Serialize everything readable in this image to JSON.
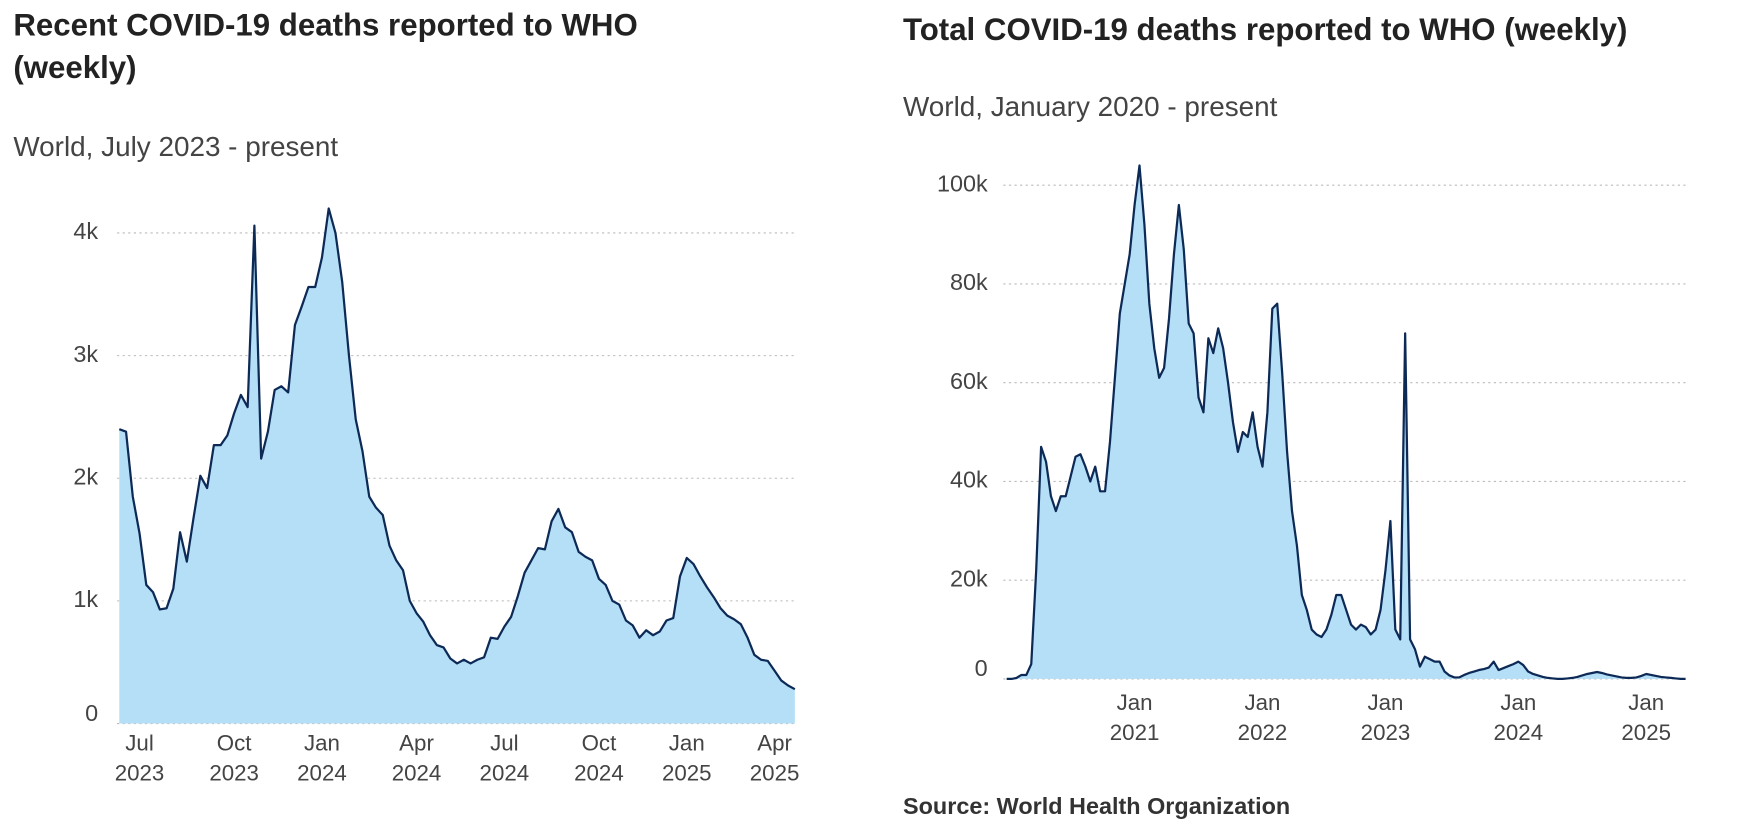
{
  "chart_data": [
    {
      "type": "area",
      "title": "Recent COVID-19 deaths reported to WHO (weekly)",
      "subtitle": "World, July 2023 - present",
      "categories": [
        null,
        null,
        null,
        "Jul 2023",
        null,
        null,
        null,
        null,
        null,
        null,
        null,
        null,
        null,
        null,
        null,
        null,
        null,
        "Oct 2023",
        null,
        null,
        null,
        null,
        null,
        null,
        null,
        null,
        null,
        null,
        null,
        null,
        "Jan 2024",
        null,
        null,
        null,
        null,
        null,
        null,
        null,
        null,
        null,
        null,
        null,
        null,
        null,
        "Apr 2024",
        null,
        null,
        null,
        null,
        null,
        null,
        null,
        null,
        null,
        null,
        null,
        null,
        "Jul 2024",
        null,
        null,
        null,
        null,
        null,
        null,
        null,
        null,
        null,
        null,
        null,
        null,
        null,
        "Oct 2024",
        null,
        null,
        null,
        null,
        null,
        null,
        null,
        null,
        null,
        null,
        null,
        null,
        "Jan 2025",
        null,
        null,
        null,
        null,
        null,
        null,
        null,
        null,
        null,
        null,
        null,
        null,
        "Apr 2025",
        null,
        null,
        null
      ],
      "values": [
        2400,
        2380,
        1850,
        1550,
        1130,
        1070,
        930,
        940,
        1100,
        1560,
        1320,
        1680,
        2020,
        1920,
        2270,
        2270,
        2350,
        2530,
        2680,
        2580,
        4060,
        2160,
        2380,
        2720,
        2750,
        2700,
        3250,
        3400,
        3560,
        3560,
        3800,
        4200,
        4000,
        3600,
        3000,
        2480,
        2220,
        1850,
        1760,
        1700,
        1450,
        1330,
        1250,
        1000,
        900,
        830,
        720,
        640,
        620,
        530,
        490,
        520,
        490,
        520,
        540,
        700,
        690,
        790,
        870,
        1040,
        1230,
        1330,
        1430,
        1420,
        1650,
        1750,
        1600,
        1560,
        1400,
        1360,
        1330,
        1180,
        1130,
        1000,
        970,
        840,
        800,
        700,
        760,
        720,
        750,
        840,
        860,
        1200,
        1350,
        1300,
        1200,
        1110,
        1030,
        940,
        880,
        850,
        810,
        700,
        560,
        520,
        510,
        430,
        350,
        310,
        280
      ],
      "color": "#0d2a56",
      "fill": "#b5dff7",
      "ylim": [
        0,
        4300
      ],
      "yticks": [
        0,
        {
          "value": 1000,
          "label": "1k"
        },
        {
          "value": 2000,
          "label": "2k"
        },
        {
          "value": 3000,
          "label": "3k"
        },
        {
          "value": 4000,
          "label": "4k"
        }
      ],
      "grid": true
    },
    {
      "type": "area",
      "title": "Total COVID-19 deaths reported to WHO (weekly)",
      "subtitle": "World, January 2020 - present",
      "categories": [
        null,
        null,
        null,
        null,
        null,
        null,
        null,
        null,
        null,
        null,
        null,
        null,
        null,
        null,
        null,
        null,
        null,
        null,
        null,
        null,
        null,
        null,
        null,
        null,
        null,
        null,
        "Jan 2021",
        null,
        null,
        null,
        null,
        null,
        null,
        null,
        null,
        null,
        null,
        null,
        null,
        null,
        null,
        null,
        null,
        null,
        null,
        null,
        null,
        null,
        null,
        null,
        null,
        null,
        "Jan 2022",
        null,
        null,
        null,
        null,
        null,
        null,
        null,
        null,
        null,
        null,
        null,
        null,
        null,
        null,
        null,
        null,
        null,
        null,
        null,
        null,
        null,
        null,
        null,
        null,
        "Jan 2023",
        null,
        null,
        null,
        null,
        null,
        null,
        null,
        null,
        null,
        null,
        null,
        null,
        null,
        null,
        null,
        null,
        null,
        null,
        null,
        null,
        null,
        null,
        null,
        null,
        null,
        null,
        "Jan 2024",
        null,
        null,
        null,
        null,
        null,
        null,
        null,
        null,
        null,
        null,
        null,
        null,
        null,
        null,
        null,
        null,
        null,
        null,
        null,
        null,
        null,
        null,
        null,
        null,
        null,
        "Jan 2025",
        null,
        null,
        null,
        null,
        null,
        null,
        null,
        null
      ],
      "values": [
        0,
        0,
        200,
        800,
        800,
        3000,
        22000,
        47000,
        44000,
        37000,
        34000,
        37000,
        37000,
        41000,
        45000,
        45500,
        43000,
        40000,
        43000,
        38000,
        38000,
        48000,
        61000,
        74000,
        80000,
        86000,
        96000,
        104000,
        92000,
        76000,
        67000,
        61000,
        63000,
        73000,
        86000,
        96000,
        87000,
        72000,
        70000,
        57000,
        54000,
        69000,
        66000,
        71000,
        67000,
        60000,
        52000,
        46000,
        50000,
        49000,
        54000,
        47000,
        43000,
        54000,
        75000,
        76000,
        62000,
        46000,
        34000,
        27000,
        17000,
        14000,
        10000,
        9000,
        8500,
        10000,
        13000,
        17000,
        17000,
        14000,
        11000,
        10000,
        11000,
        10500,
        9000,
        10000,
        14000,
        22000,
        32000,
        10000,
        8000,
        70000,
        8000,
        6000,
        2500,
        4500,
        4000,
        3500,
        3500,
        1500,
        700,
        300,
        300,
        800,
        1200,
        1500,
        1800,
        2000,
        2300,
        3500,
        1800,
        2200,
        2600,
        3000,
        3500,
        2800,
        1500,
        1000,
        700,
        400,
        200,
        100,
        0,
        0,
        100,
        200,
        400,
        700,
        1000,
        1200,
        1400,
        1200,
        900,
        700,
        500,
        300,
        200,
        200,
        300,
        600,
        1000,
        800,
        600,
        400,
        300,
        200,
        100,
        0,
        0
      ],
      "color": "#0d2a56",
      "fill": "#b5dff7",
      "ylim": [
        0,
        105000
      ],
      "yticks": [
        0,
        {
          "value": 20000,
          "label": "20k"
        },
        {
          "value": 40000,
          "label": "40k"
        },
        {
          "value": 60000,
          "label": "60k"
        },
        {
          "value": 80000,
          "label": "80k"
        },
        {
          "value": 100000,
          "label": "100k"
        }
      ],
      "grid": true
    }
  ],
  "source": "Source: World Health Organization"
}
